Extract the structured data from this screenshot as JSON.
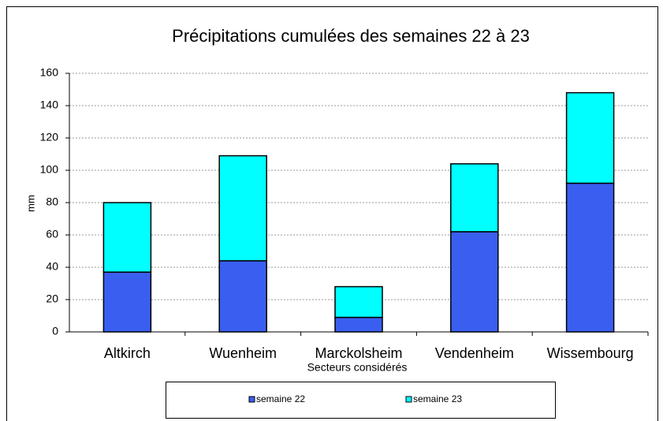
{
  "chart_data": {
    "type": "stacked_bar",
    "title": "Précipitations cumulées des semaines  22 à 23",
    "y_label": "mm",
    "x_label": "Secteurs considérés",
    "categories": [
      "Altkirch",
      "Wuenheim",
      "Marckolsheim",
      "Vendenheim",
      "Wissembourg"
    ],
    "series": [
      {
        "name": "semaine 22",
        "color": "#3a5ff0",
        "values": [
          37,
          44,
          9,
          62,
          92
        ]
      },
      {
        "name": "semaine 23",
        "color": "#00ffff",
        "values": [
          43,
          65,
          19,
          42,
          56
        ]
      }
    ],
    "ylim": [
      0,
      160
    ],
    "yticks": [
      0,
      20,
      40,
      60,
      80,
      100,
      120,
      140,
      160
    ],
    "grid": true
  }
}
